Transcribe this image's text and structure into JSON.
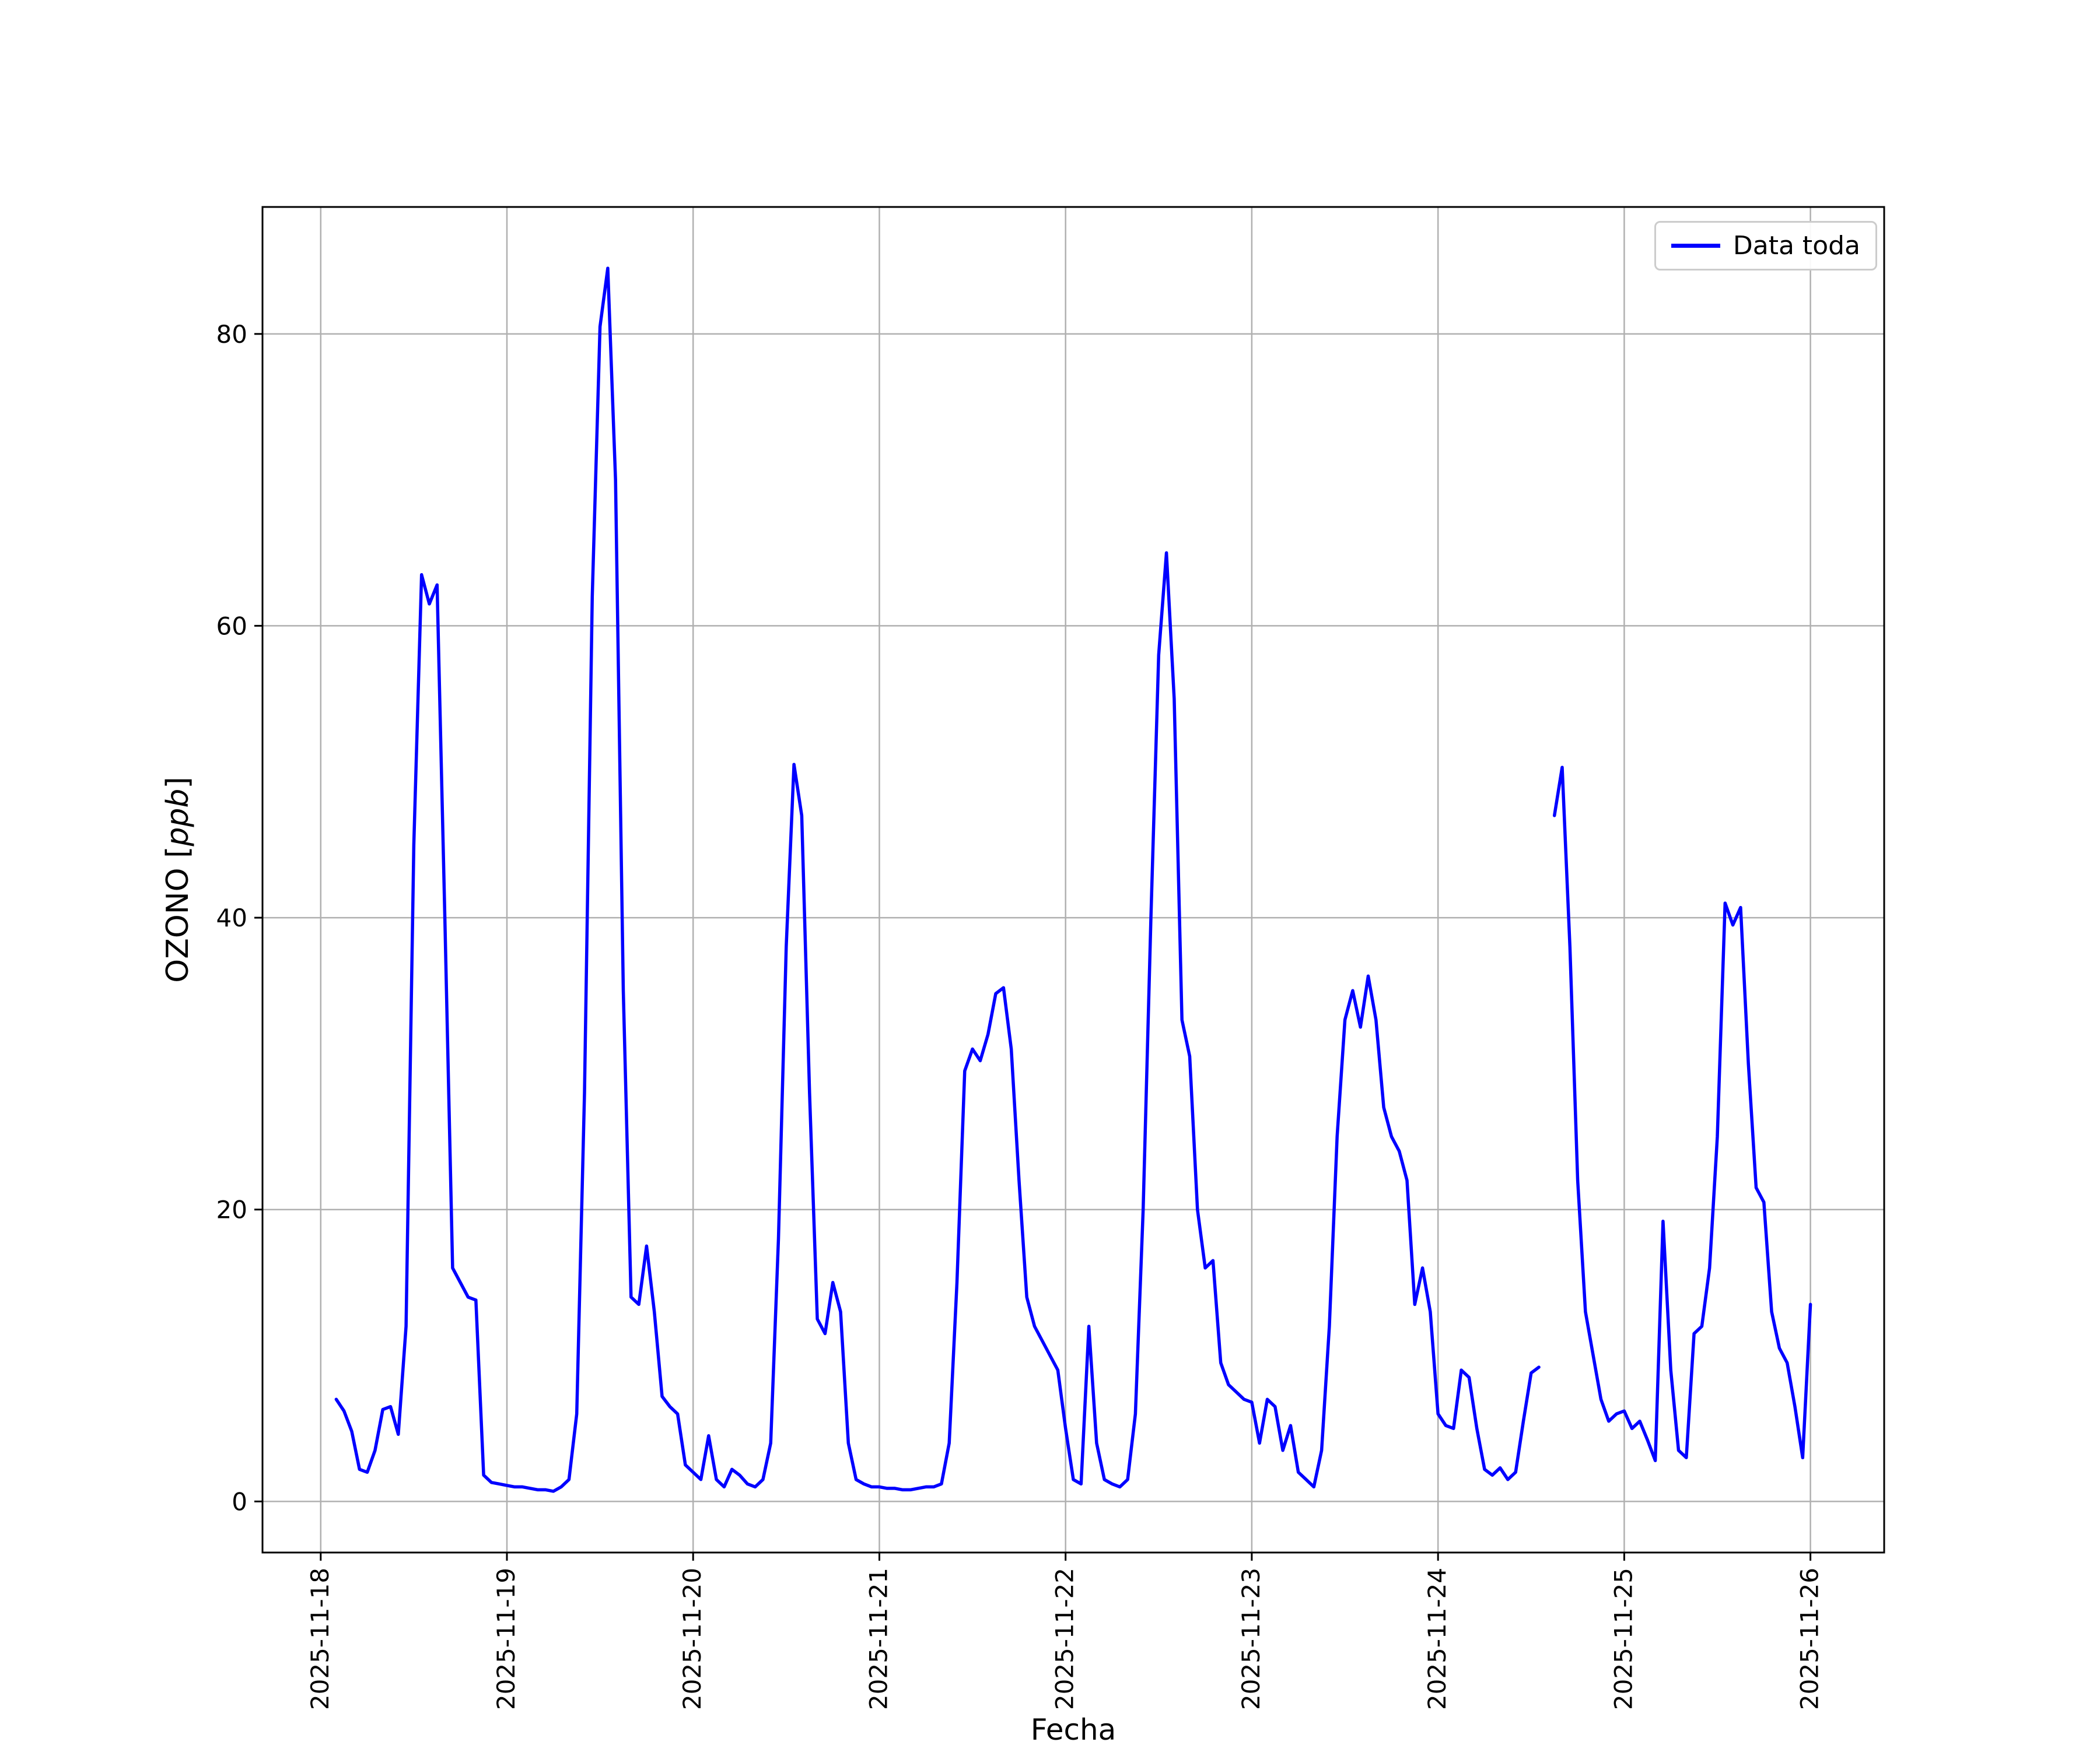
{
  "figure": {
    "background": "#ffffff",
    "xlabel": "Fecha",
    "ylabel_prefix": "OZONO [",
    "ylabel_italic": "ppb",
    "ylabel_suffix": "]",
    "legend_label": "Data toda"
  },
  "chart_data": {
    "type": "line",
    "title": "",
    "xlabel": "Fecha",
    "ylabel": "OZONO [ppb]",
    "grid": true,
    "grid_color": "#b0b0b0",
    "axis_color": "#000000",
    "legend_position": "upper right",
    "legend_entries": [
      "Data toda"
    ],
    "x_tick_labels": [
      "2025-11-18",
      "2025-11-19",
      "2025-11-20",
      "2025-11-21",
      "2025-11-22",
      "2025-11-23",
      "2025-11-24",
      "2025-11-25",
      "2025-11-26"
    ],
    "x_tick_hours": [
      0,
      24,
      48,
      72,
      96,
      120,
      144,
      168,
      192
    ],
    "y_ticks": [
      0,
      20,
      40,
      60,
      80
    ],
    "xlim_hours": [
      -7.5,
      201.5
    ],
    "ylim": [
      -3.5,
      88.7
    ],
    "x_unit": "hours since 2025-11-18 00:00",
    "series": [
      {
        "name": "Data toda",
        "color": "#0000ff",
        "start_hour": 2,
        "interval_hours": 1,
        "values": [
          7.0,
          6.2,
          4.8,
          2.2,
          2.0,
          3.5,
          6.3,
          6.5,
          4.6,
          12.0,
          45.0,
          63.5,
          61.5,
          62.8,
          40.0,
          16.0,
          15.0,
          14.0,
          13.8,
          1.8,
          1.3,
          1.2,
          1.1,
          1.0,
          1.0,
          0.9,
          0.8,
          0.8,
          0.7,
          1.0,
          1.5,
          6.0,
          28.0,
          62.0,
          80.5,
          84.5,
          70.0,
          35.0,
          14.0,
          13.5,
          17.5,
          13.0,
          7.2,
          6.5,
          6.0,
          2.5,
          2.0,
          1.5,
          4.5,
          1.5,
          1.0,
          2.2,
          1.8,
          1.2,
          1.0,
          1.5,
          4.0,
          18.0,
          38.0,
          50.5,
          47.0,
          28.0,
          12.5,
          11.5,
          15.0,
          13.0,
          4.0,
          1.5,
          1.2,
          1.0,
          1.0,
          0.9,
          0.9,
          0.8,
          0.8,
          0.9,
          1.0,
          1.0,
          1.2,
          4.0,
          15.0,
          29.5,
          31.0,
          30.2,
          32.0,
          34.8,
          35.2,
          31.0,
          22.0,
          14.0,
          12.0,
          11.0,
          10.0,
          9.0,
          5.0,
          1.5,
          1.2,
          12.0,
          4.0,
          1.5,
          1.2,
          1.0,
          1.5,
          6.0,
          20.0,
          40.0,
          58.0,
          65.0,
          55.0,
          33.0,
          30.5,
          20.0,
          16.0,
          16.5,
          9.5,
          8.0,
          7.5,
          7.0,
          6.8,
          4.0,
          7.0,
          6.5,
          3.5,
          5.2,
          2.0,
          1.5,
          1.0,
          3.5,
          12.0,
          25.0,
          33.0,
          35.0,
          32.5,
          36.0,
          33.0,
          27.0,
          25.0,
          24.0,
          22.0,
          13.5,
          16.0,
          13.0,
          6.0,
          5.2,
          5.0,
          9.0,
          8.5,
          5.0,
          2.2,
          1.8,
          2.3,
          1.5,
          2.0,
          5.5,
          8.8,
          9.2,
          null,
          47.0,
          50.3,
          38.0,
          22.0,
          13.0,
          10.0,
          7.0,
          5.5,
          6.0,
          6.2,
          5.0,
          5.5,
          4.2,
          2.8,
          19.2,
          9.0,
          3.5,
          3.0,
          11.5,
          12.0,
          16.0,
          25.0,
          41.0,
          39.5,
          40.7,
          30.0,
          21.5,
          20.5,
          13.0,
          10.5,
          9.5,
          6.5,
          3.0,
          13.5
        ]
      }
    ]
  }
}
